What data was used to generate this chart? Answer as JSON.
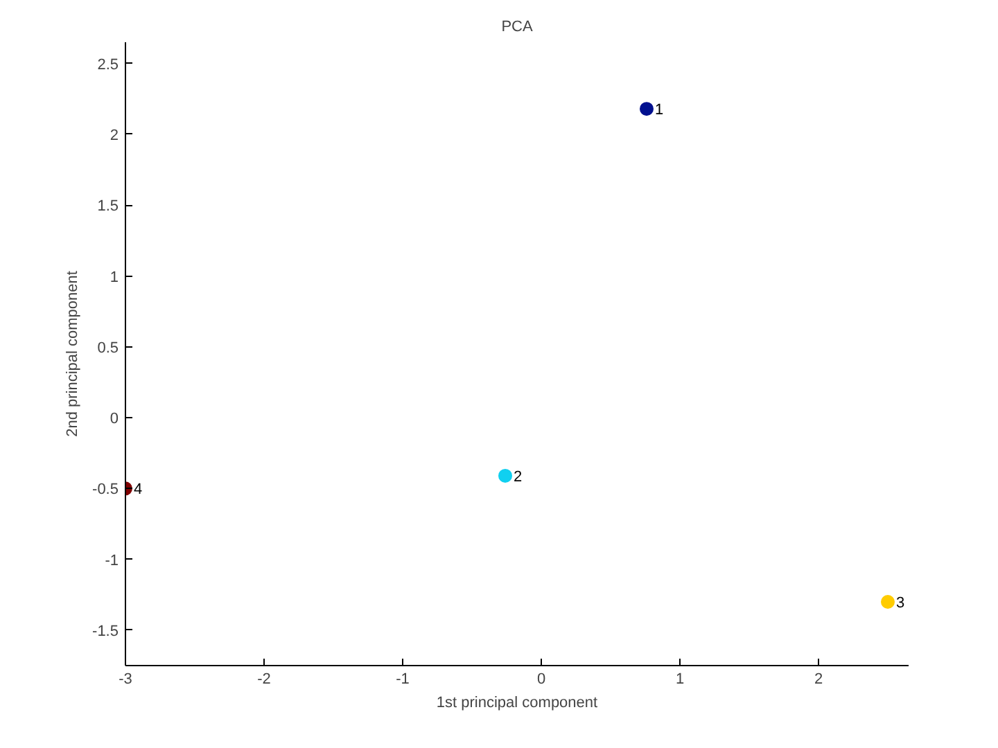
{
  "chart_data": {
    "type": "scatter",
    "title": "PCA",
    "xlabel": "1st principal component",
    "ylabel": "2nd principal component",
    "x": [
      0.76,
      -0.26,
      2.5,
      -3.0
    ],
    "values": [
      2.18,
      -0.41,
      -1.3,
      -0.5
    ],
    "colors": [
      "#00108f",
      "#10d0f0",
      "#ffcc00",
      "#800000"
    ],
    "marker": "circle",
    "grid": false,
    "xlim": [
      -3,
      2.65
    ],
    "ylim": [
      -1.75,
      2.65
    ],
    "xticks": [
      -3,
      -2,
      -1,
      0,
      1,
      2
    ],
    "yticks": [
      -1.5,
      -1,
      -0.5,
      0,
      0.5,
      1,
      1.5,
      2,
      2.5
    ],
    "annotations": [
      {
        "text": "1",
        "x": 0.76,
        "y": 2.18
      },
      {
        "text": "2",
        "x": -0.26,
        "y": -0.41
      },
      {
        "text": "3",
        "x": 2.5,
        "y": -1.3
      },
      {
        "text": "4",
        "x": -3.0,
        "y": -0.5
      }
    ]
  }
}
